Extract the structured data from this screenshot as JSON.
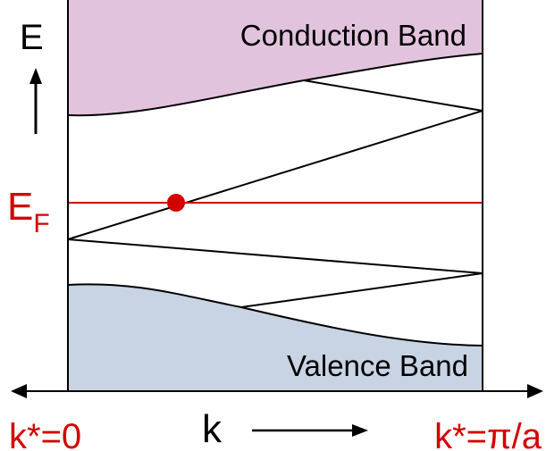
{
  "labels": {
    "conduction_band": "Conduction Band",
    "valence_band": "Valence Band",
    "energy_axis": "E",
    "fermi_main": "E",
    "fermi_sub": "F",
    "k_axis": "k",
    "k_left": "k*=0",
    "k_right_prefix": "k*=",
    "k_right_pi": "π",
    "k_right_suffix": "/a"
  },
  "colors": {
    "conduction_fill": "#e2c3de",
    "valence_fill": "#c8d3e3",
    "fermi": "#d40000",
    "line": "#000000"
  }
}
